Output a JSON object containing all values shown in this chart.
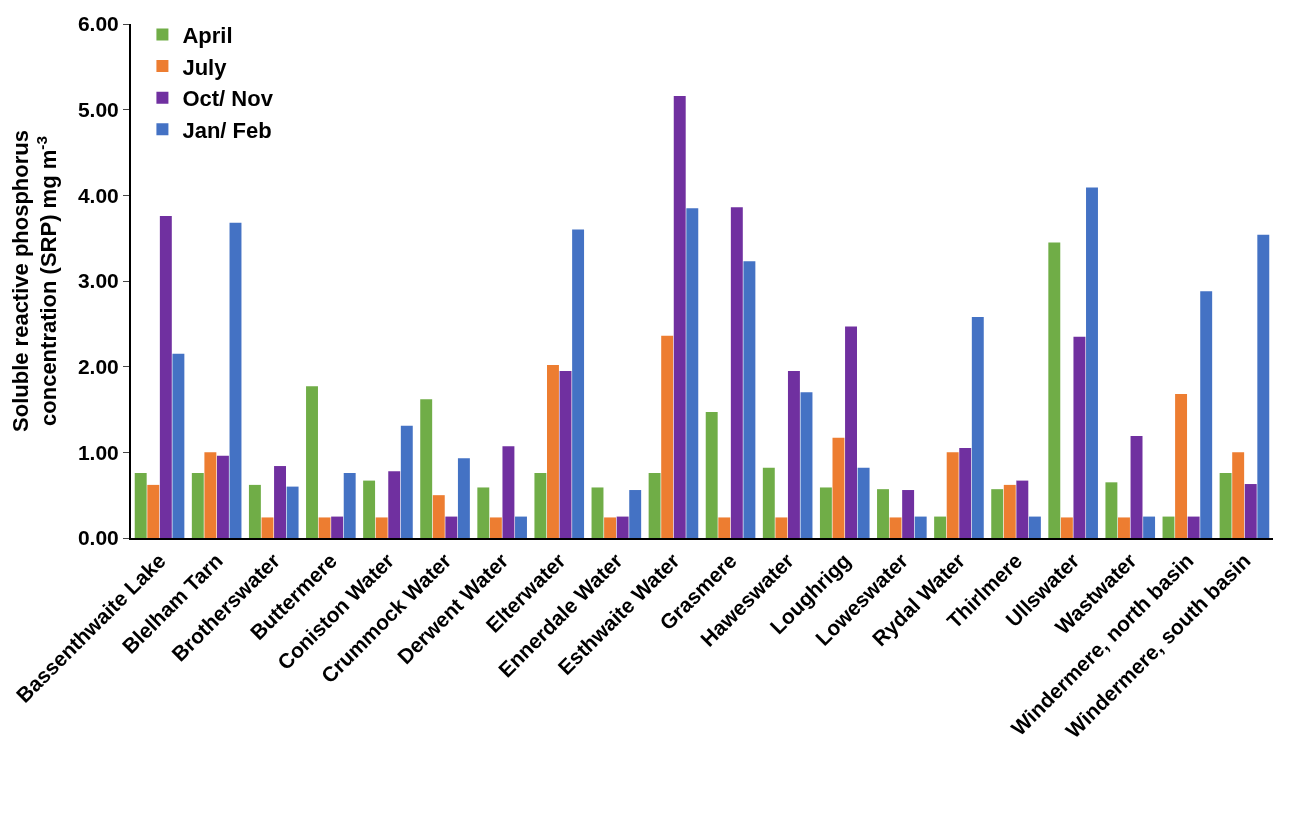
{
  "chart_data": {
    "type": "bar",
    "ylabel": "Soluble reactive phosphorus\nconcentration (SRP) mg m$^{-3}$",
    "categories": [
      "Bassenthwaite Lake",
      "Blelham Tarn",
      "Brotherswater",
      "Buttermere",
      "Coniston Water",
      "Crummock Water",
      "Derwent Water",
      "Elterwater",
      "Ennerdale Water",
      "Esthwaite Water",
      "Grasmere",
      "Haweswater",
      "Loughrigg",
      "Loweswater",
      "Rydal Water",
      "Thirlmere",
      "Ullswater",
      "Wastwater",
      "Windermere, north basin",
      "Windermere, south basin"
    ],
    "series": [
      {
        "name": "April",
        "color": "#70ad47",
        "values": [
          0.76,
          0.76,
          0.62,
          1.77,
          0.67,
          1.62,
          0.59,
          0.76,
          0.59,
          0.76,
          1.47,
          0.82,
          0.59,
          0.57,
          0.25,
          0.57,
          3.45,
          0.65,
          0.25,
          0.76
        ]
      },
      {
        "name": "July",
        "color": "#ed7d31",
        "values": [
          0.62,
          1.0,
          0.24,
          0.24,
          0.24,
          0.5,
          0.24,
          2.02,
          0.24,
          2.36,
          0.24,
          0.24,
          1.17,
          0.24,
          1.0,
          0.62,
          0.24,
          0.24,
          1.68,
          1.0
        ]
      },
      {
        "name": "Oct/ Nov",
        "color": "#7030a0",
        "values": [
          3.76,
          0.96,
          0.84,
          0.25,
          0.78,
          0.25,
          1.07,
          1.95,
          0.25,
          5.16,
          3.86,
          1.95,
          2.47,
          0.56,
          1.05,
          0.67,
          2.35,
          1.19,
          0.25,
          0.63
        ]
      },
      {
        "name": "Jan/ Feb",
        "color": "#4472c4",
        "values": [
          2.15,
          3.68,
          0.6,
          0.76,
          1.31,
          0.93,
          0.25,
          3.6,
          0.56,
          3.85,
          3.23,
          1.7,
          0.82,
          0.25,
          2.58,
          0.25,
          4.09,
          0.25,
          2.88,
          3.54
        ]
      }
    ],
    "ylim": [
      0,
      6
    ],
    "yticks": [
      {
        "value": 0,
        "label": "0.00"
      },
      {
        "value": 1,
        "label": "1.00"
      },
      {
        "value": 2,
        "label": "2.00"
      },
      {
        "value": 3,
        "label": "3.00"
      },
      {
        "value": 4,
        "label": "4.00"
      },
      {
        "value": 5,
        "label": "5.00"
      },
      {
        "value": 6,
        "label": "6.00"
      }
    ],
    "legend": "top left"
  }
}
